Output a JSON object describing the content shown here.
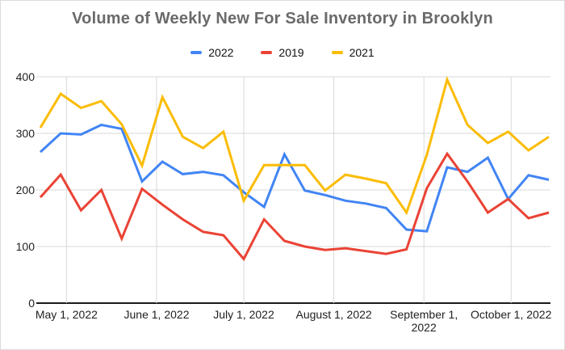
{
  "chart_data": {
    "type": "line",
    "title": "Volume of Weekly New For Sale Inventory in Brooklyn",
    "xlabel": "",
    "ylabel": "",
    "ylim": [
      0,
      400
    ],
    "y_ticks": [
      0,
      100,
      200,
      300,
      400
    ],
    "grid": true,
    "legend_position": "top",
    "x_unit": "weeks",
    "points_per_series": 26,
    "week_interval_days": 7,
    "x_ticks": [
      {
        "label": "May 1, 2022",
        "day": 9,
        "lines": [
          "May 1, 2022"
        ]
      },
      {
        "label": "June 1, 2022",
        "day": 40,
        "lines": [
          "June 1, 2022"
        ]
      },
      {
        "label": "July 1, 2022",
        "day": 70,
        "lines": [
          "July 1, 2022"
        ]
      },
      {
        "label": "August 1, 2022",
        "day": 101,
        "lines": [
          "August 1, 2022"
        ]
      },
      {
        "label": "September 1, 2022",
        "day": 132,
        "lines": [
          "September 1,",
          "2022"
        ]
      },
      {
        "label": "October 1, 2022",
        "day": 162,
        "lines": [
          "October 1, 2022"
        ]
      }
    ],
    "series": [
      {
        "name": "2022",
        "color": "#4285f4",
        "values": [
          267,
          300,
          298,
          315,
          308,
          215,
          250,
          228,
          232,
          226,
          196,
          170,
          263,
          199,
          191,
          181,
          176,
          168,
          130,
          127,
          240,
          232,
          257,
          184,
          226,
          218
        ]
      },
      {
        "name": "2019",
        "color": "#ea4335",
        "values": [
          187,
          227,
          164,
          200,
          114,
          202,
          174,
          148,
          126,
          120,
          78,
          148,
          110,
          100,
          94,
          97,
          92,
          87,
          95,
          203,
          264,
          215,
          160,
          184,
          150,
          160
        ]
      },
      {
        "name": "2021",
        "color": "#fbbc04",
        "values": [
          310,
          370,
          345,
          357,
          316,
          243,
          364,
          294,
          274,
          303,
          181,
          244,
          244,
          244,
          199,
          227,
          220,
          212,
          160,
          262,
          395,
          315,
          283,
          303,
          270,
          294
        ]
      }
    ],
    "style": {
      "line_width": 3,
      "gridline_color": "#d9d9d9",
      "axis_line_color": "#1a1a1a",
      "title_color": "#6a6a6a",
      "label_color": "#1f1f1f"
    }
  }
}
